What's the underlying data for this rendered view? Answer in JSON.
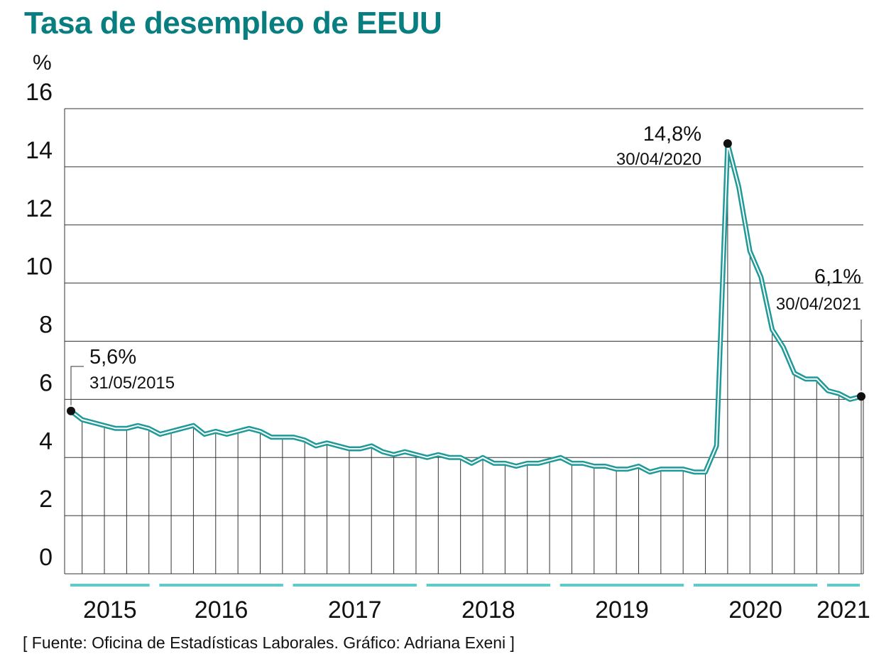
{
  "title": "Tasa de desempleo de EEUU",
  "unit_label": "%",
  "source": "[ Fuente: Oficina de Estadísticas Laborales. Gráfico: Adriana Exeni ]",
  "colors": {
    "title": "#087e80",
    "line": "#1f9a99",
    "line_inner": "#ffffff",
    "year_bar": "#5fcbc9",
    "grid": "#333333",
    "text": "#111111"
  },
  "chart_data": {
    "type": "line",
    "title": "Tasa de desempleo de EEUU",
    "ylabel": "%",
    "xlabel": "",
    "ylim": [
      0,
      16
    ],
    "yticks": [
      0,
      2,
      4,
      6,
      8,
      10,
      12,
      14,
      16
    ],
    "grid": true,
    "start_month": "2015-05",
    "values": [
      5.6,
      5.3,
      5.2,
      5.1,
      5.0,
      5.0,
      5.1,
      5.0,
      4.8,
      4.9,
      5.0,
      5.1,
      4.8,
      4.9,
      4.8,
      4.9,
      5.0,
      4.9,
      4.7,
      4.7,
      4.7,
      4.6,
      4.4,
      4.5,
      4.4,
      4.3,
      4.3,
      4.4,
      4.2,
      4.1,
      4.2,
      4.1,
      4.0,
      4.1,
      4.0,
      4.0,
      3.8,
      4.0,
      3.8,
      3.8,
      3.7,
      3.8,
      3.8,
      3.9,
      4.0,
      3.8,
      3.8,
      3.7,
      3.7,
      3.6,
      3.6,
      3.7,
      3.5,
      3.6,
      3.6,
      3.6,
      3.5,
      3.5,
      4.4,
      14.8,
      13.3,
      11.1,
      10.2,
      8.4,
      7.8,
      6.9,
      6.7,
      6.7,
      6.3,
      6.2,
      6.0,
      6.1
    ],
    "years": [
      {
        "label": "2015",
        "from": "2015-06",
        "to": "2015-08"
      },
      {
        "label": "2016",
        "from": "2015-09",
        "to": "2016-03"
      },
      {
        "label": "2017",
        "from": "2016-03",
        "to": "2016-09"
      },
      {
        "label": "2018",
        "from": "2016-09",
        "to": "2017-03"
      },
      {
        "label": "2019",
        "from": "2017-03",
        "to": "2017-09"
      },
      {
        "label": "2020",
        "from": "2017-09",
        "to": "2018-03"
      },
      {
        "label": "2021",
        "from": "2018-03",
        "to": "2018-05"
      }
    ],
    "year_labels": [
      "2015",
      "2016",
      "2017",
      "2018",
      "2019",
      "2020",
      "2021"
    ],
    "annotations": [
      {
        "value": "5,6%",
        "date": "31/05/2015",
        "index": 0
      },
      {
        "value": "14,8%",
        "date": "30/04/2020",
        "index": 59
      },
      {
        "value": "6,1%",
        "date": "30/04/2021",
        "index": 71
      }
    ]
  }
}
